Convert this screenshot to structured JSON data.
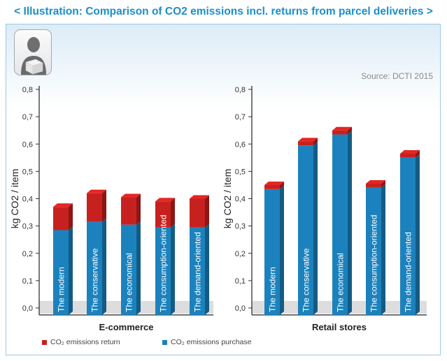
{
  "header": {
    "title": "< Illustration: Comparison of CO2 emissions incl. returns from parcel deliveries >"
  },
  "source": "Source: DCTI 2015",
  "icons": {
    "avatar": "person-with-parcel-icon"
  },
  "colors": {
    "purchase": "#1c82bd",
    "return": "#c7211f",
    "title": "#1b8fc9"
  },
  "legend": [
    {
      "label": "CO₂ emissions return",
      "color": "#c7211f"
    },
    {
      "label": "CO₂ emissions purchase",
      "color": "#1c82bd"
    }
  ],
  "chart_data": [
    {
      "type": "bar",
      "stacked": true,
      "title": "E-commerce",
      "ylabel": "kg CO2 / item",
      "ylim": [
        0,
        0.8
      ],
      "yticks": [
        "0,0",
        "0,1",
        "0,2",
        "0,3",
        "0,4",
        "0,5",
        "0,6",
        "0,7",
        "0,8"
      ],
      "categories": [
        "The modern",
        "The conservative",
        "The economical",
        "The consumption-oriented",
        "The demand-oriented"
      ],
      "series": [
        {
          "name": "CO₂ emissions purchase",
          "values": [
            0.285,
            0.315,
            0.305,
            0.295,
            0.295
          ]
        },
        {
          "name": "CO₂ emissions return",
          "values": [
            0.085,
            0.105,
            0.1,
            0.095,
            0.105
          ]
        }
      ]
    },
    {
      "type": "bar",
      "stacked": true,
      "title": "Retail stores",
      "ylabel": "kg CO2 / item",
      "ylim": [
        0,
        0.8
      ],
      "yticks": [
        "0,0",
        "0,1",
        "0,2",
        "0,3",
        "0,4",
        "0,5",
        "0,6",
        "0,7",
        "0,8"
      ],
      "categories": [
        "The modern",
        "The conservative",
        "The economical",
        "The consumption-oriented",
        "The demand-oriented"
      ],
      "series": [
        {
          "name": "CO₂ emissions purchase",
          "values": [
            0.435,
            0.595,
            0.635,
            0.44,
            0.55
          ]
        },
        {
          "name": "CO₂ emissions return",
          "values": [
            0.015,
            0.015,
            0.015,
            0.015,
            0.015
          ]
        }
      ]
    }
  ]
}
